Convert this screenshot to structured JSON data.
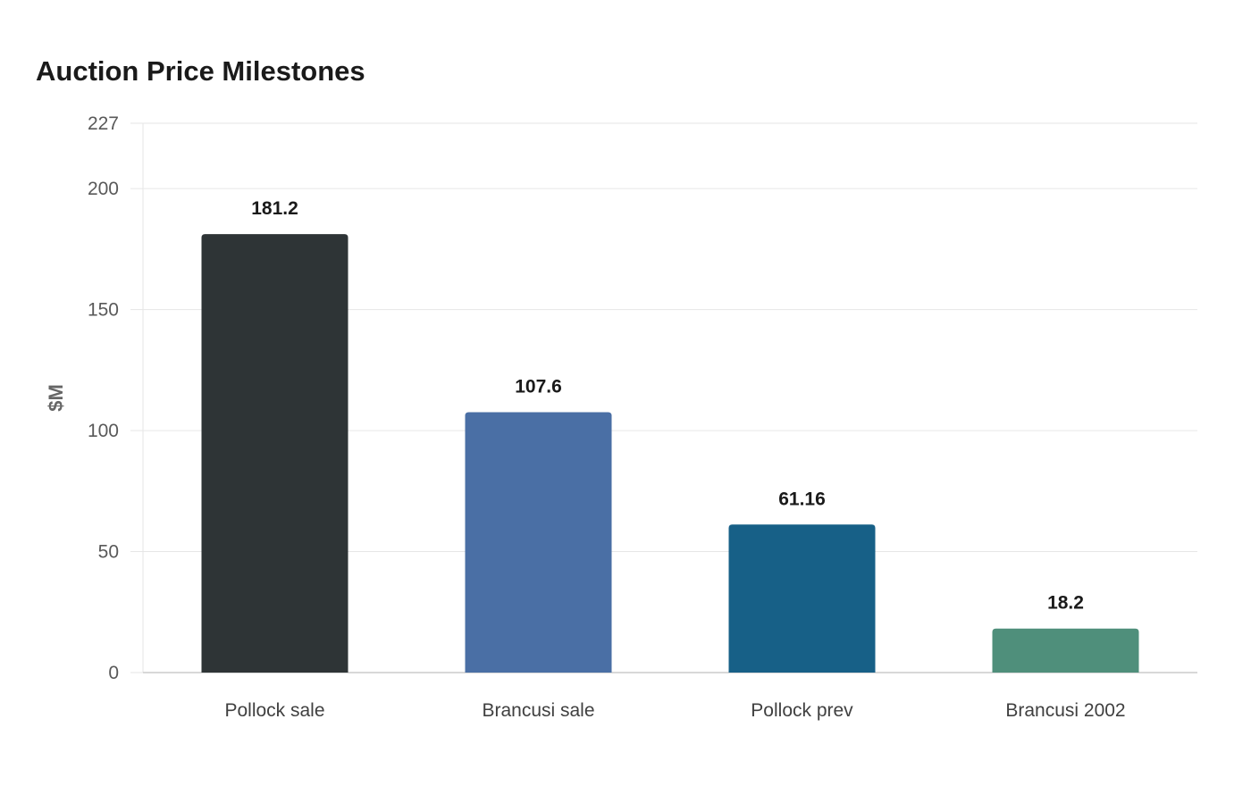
{
  "chart_data": {
    "type": "bar",
    "title": "Auction Price Milestones",
    "xlabel": "",
    "ylabel": "$M",
    "ylim": [
      0,
      227
    ],
    "yticks": [
      0,
      50,
      100,
      150,
      200,
      227
    ],
    "grid": true,
    "legend": "none",
    "categories": [
      "Pollock sale",
      "Brancusi sale",
      "Pollock prev",
      "Brancusi 2002"
    ],
    "values": [
      181.2,
      107.6,
      61.16,
      18.2
    ],
    "value_labels": [
      "181.2",
      "107.6",
      "61.16",
      "18.2"
    ],
    "colors": [
      "#2e3436",
      "#4a6fa5",
      "#176087",
      "#4f8f7b"
    ]
  }
}
